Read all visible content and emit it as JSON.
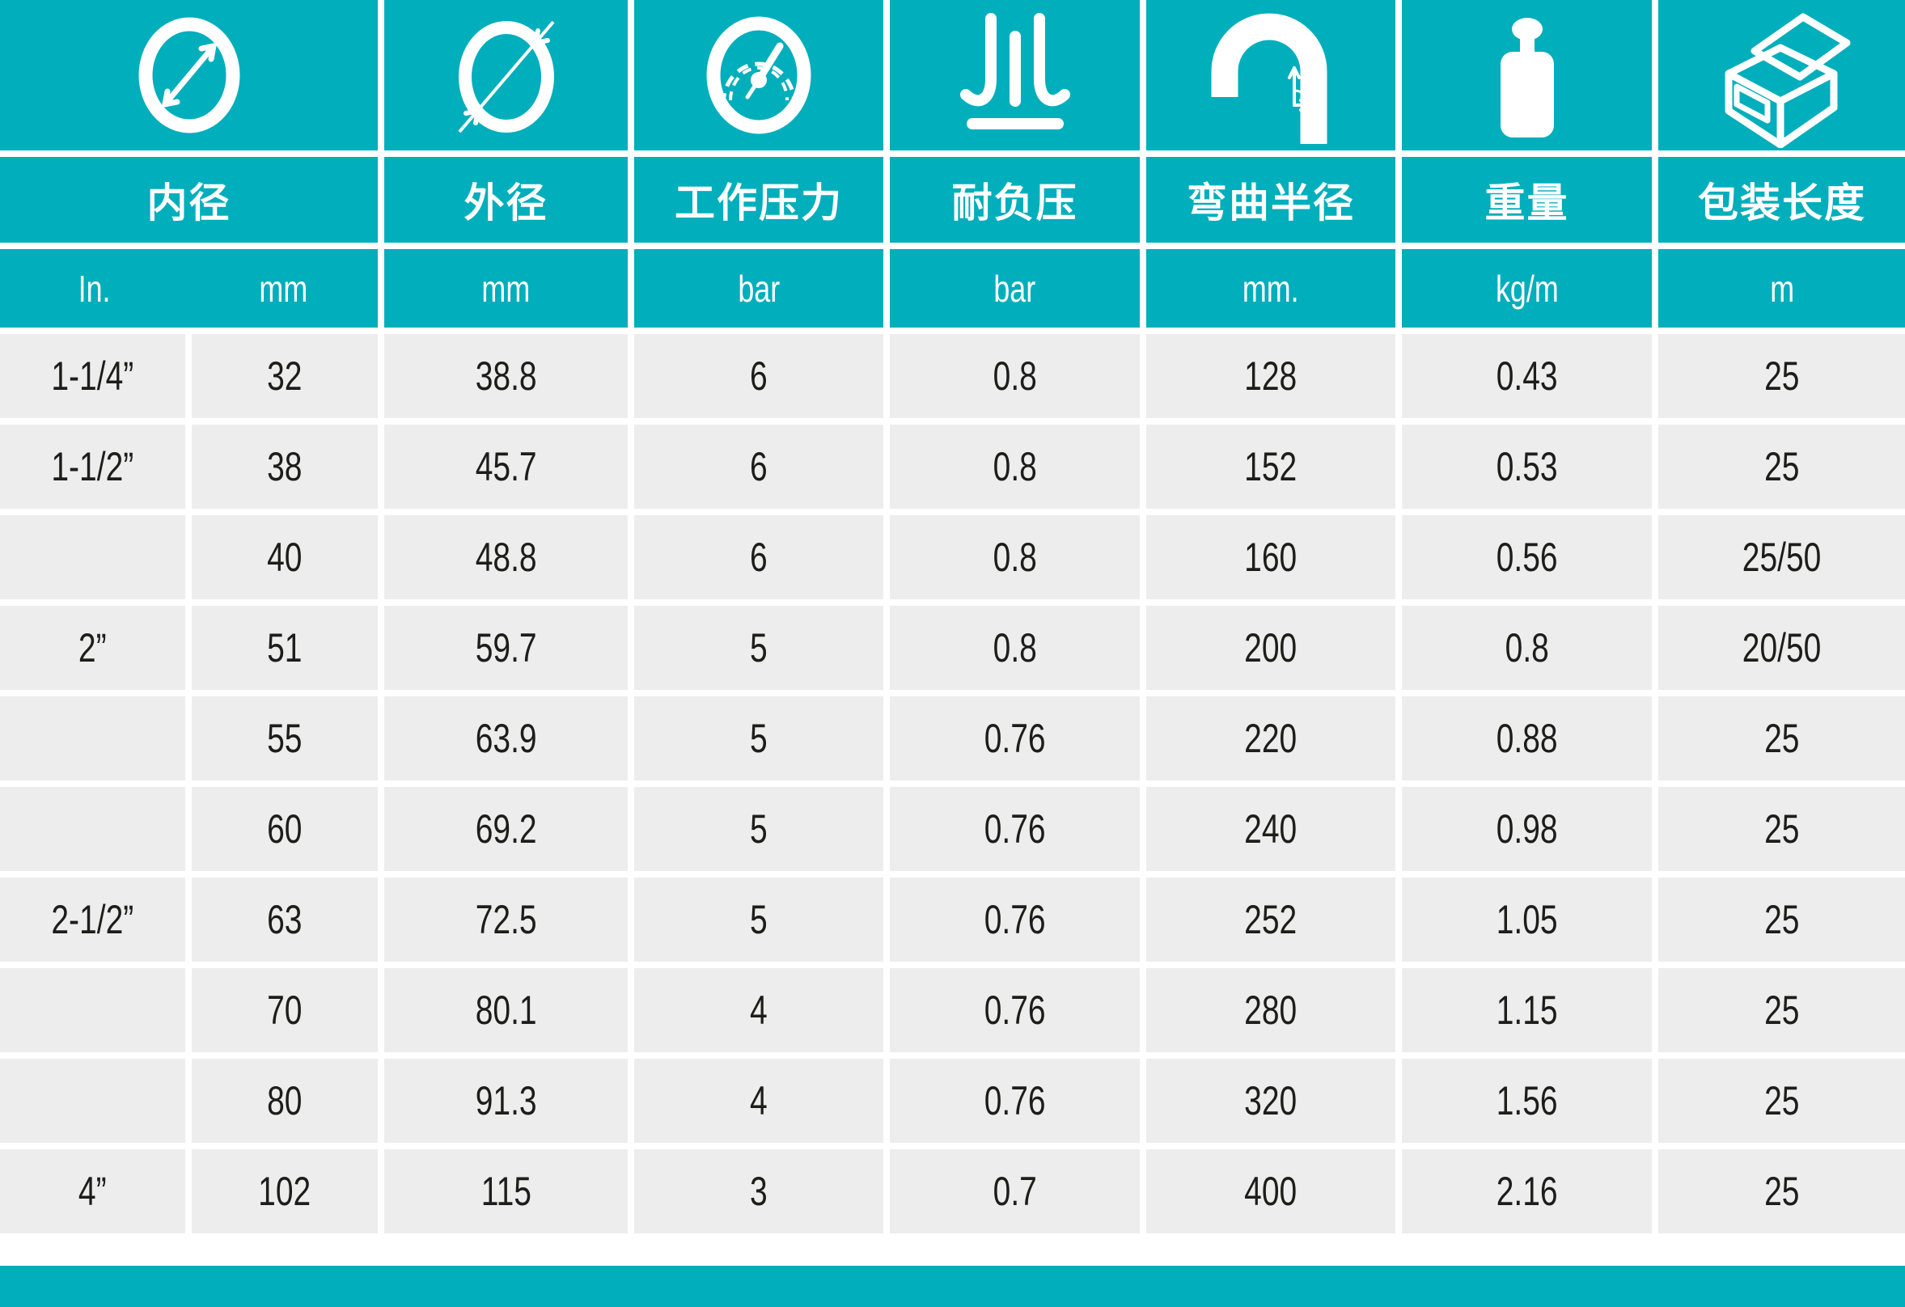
{
  "chart_data": {
    "type": "table",
    "title": "",
    "column_groups": [
      {
        "label": "内径",
        "icon": "inner-diameter-icon",
        "units": [
          "In.",
          "mm"
        ]
      },
      {
        "label": "外径",
        "icon": "outer-diameter-icon",
        "units": [
          "mm"
        ]
      },
      {
        "label": "工作压力",
        "icon": "pressure-gauge-icon",
        "units": [
          "bar"
        ]
      },
      {
        "label": "耐负压",
        "icon": "vacuum-icon",
        "units": [
          "bar"
        ]
      },
      {
        "label": "弯曲半径",
        "icon": "bend-radius-icon",
        "units": [
          "mm."
        ]
      },
      {
        "label": "重量",
        "icon": "weight-icon",
        "units": [
          "kg/m"
        ]
      },
      {
        "label": "包装长度",
        "icon": "package-icon",
        "units": [
          "m"
        ]
      }
    ],
    "rows": [
      [
        "1-1/4”",
        "32",
        "38.8",
        "6",
        "0.8",
        "128",
        "0.43",
        "25"
      ],
      [
        "1-1/2”",
        "38",
        "45.7",
        "6",
        "0.8",
        "152",
        "0.53",
        "25"
      ],
      [
        "",
        "40",
        "48.8",
        "6",
        "0.8",
        "160",
        "0.56",
        "25/50"
      ],
      [
        "2”",
        "51",
        "59.7",
        "5",
        "0.8",
        "200",
        "0.8",
        "20/50"
      ],
      [
        "",
        "55",
        "63.9",
        "5",
        "0.76",
        "220",
        "0.88",
        "25"
      ],
      [
        "",
        "60",
        "69.2",
        "5",
        "0.76",
        "240",
        "0.98",
        "25"
      ],
      [
        "2-1/2”",
        "63",
        "72.5",
        "5",
        "0.76",
        "252",
        "1.05",
        "25"
      ],
      [
        "",
        "70",
        "80.1",
        "4",
        "0.76",
        "280",
        "1.15",
        "25"
      ],
      [
        "",
        "80",
        "91.3",
        "4",
        "0.76",
        "320",
        "1.56",
        "25"
      ],
      [
        "4”",
        "102",
        "115",
        "3",
        "0.7",
        "400",
        "2.16",
        "25"
      ]
    ]
  },
  "colors": {
    "teal": "#00aebc",
    "row_bg": "#ededed",
    "text_dark": "#1d1d1b",
    "white": "#ffffff"
  }
}
